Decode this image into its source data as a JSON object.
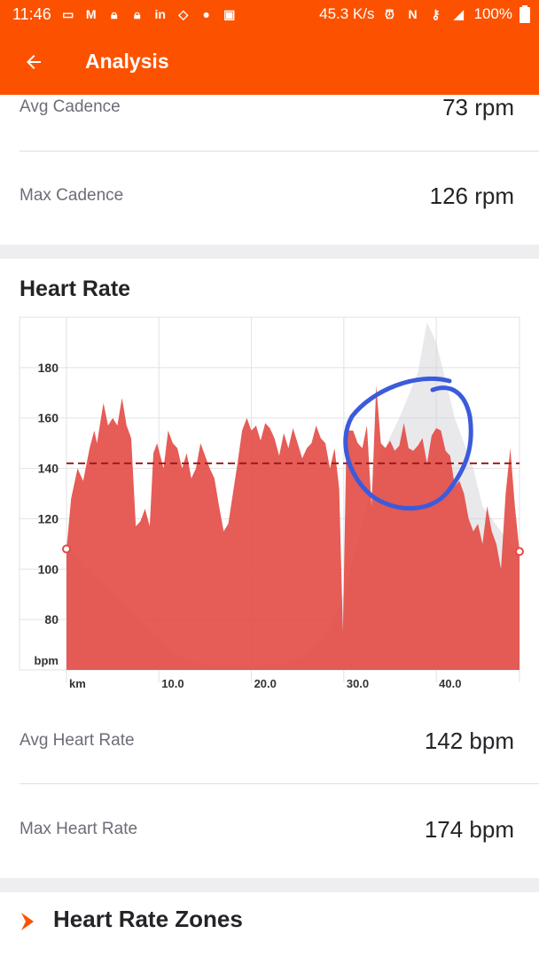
{
  "status_bar": {
    "time": "11:46",
    "network_speed": "45.3 K/s",
    "battery": "100%",
    "icons": [
      "sd-card-icon",
      "gmail-icon",
      "lock-icon",
      "lock-icon",
      "linkedin-icon",
      "assistant-icon",
      "google-icon",
      "news-icon"
    ]
  },
  "header": {
    "title": "Analysis"
  },
  "cadence": {
    "avg_label": "Avg Cadence",
    "avg_value": "73 rpm",
    "max_label": "Max Cadence",
    "max_value": "126 rpm"
  },
  "heart_rate": {
    "title": "Heart Rate",
    "avg_label": "Avg Heart Rate",
    "avg_value": "142 bpm",
    "max_label": "Max Heart Rate",
    "max_value": "174 bpm"
  },
  "zones": {
    "title": "Heart Rate Zones"
  },
  "colors": {
    "brand": "#fc5200",
    "hr_fill": "#e34a44",
    "avg_line": "#9e1b1b",
    "annotation": "#3b5bdb"
  },
  "chart_data": {
    "type": "area",
    "xlabel": "km",
    "ylabel": "bpm",
    "x_ticks": [
      "10.0",
      "20.0",
      "30.0",
      "40.0"
    ],
    "y_ticks": [
      "80",
      "100",
      "120",
      "140",
      "160",
      "180"
    ],
    "xlim": [
      0,
      49
    ],
    "ylim": [
      60,
      200
    ],
    "grid": true,
    "avg_line": 142,
    "series": [
      {
        "x": [
          0,
          0.5,
          1.2,
          1.8,
          2.5,
          3,
          3.3,
          4,
          4.5,
          5,
          5.5,
          6,
          6.5,
          7,
          7.5,
          8,
          8.5,
          9,
          9.4,
          9.8,
          10.5,
          11,
          11.5,
          12,
          12.5,
          13,
          13.5,
          14,
          14.5,
          15,
          15.5,
          16,
          16.5,
          17,
          17.5,
          18,
          18.5,
          19,
          19.5,
          20,
          20.5,
          21,
          21.5,
          22,
          22.5,
          23,
          23.5,
          24,
          24.5,
          25,
          25.5,
          26,
          26.5,
          27,
          27.5,
          28,
          28.5,
          29,
          29.5,
          29.9,
          30.3,
          31,
          31.5,
          32,
          32.5,
          33,
          33.5,
          34,
          34.5,
          35,
          35.5,
          36,
          36.5,
          37,
          37.5,
          38,
          38.5,
          39,
          39.5,
          40,
          40.5,
          41,
          41.5,
          42,
          42.5,
          43,
          43.5,
          44,
          44.5,
          45,
          45.5,
          46,
          46.5,
          47,
          47.5,
          48,
          48.5,
          49
        ],
        "y": [
          108,
          128,
          140,
          135,
          148,
          155,
          150,
          166,
          157,
          160,
          157,
          168,
          157,
          152,
          117,
          119,
          124,
          117,
          146,
          150,
          140,
          155,
          150,
          148,
          140,
          146,
          136,
          140,
          150,
          145,
          140,
          136,
          125,
          115,
          118,
          130,
          142,
          155,
          160,
          155,
          157,
          151,
          158,
          156,
          152,
          145,
          154,
          148,
          156,
          150,
          144,
          148,
          150,
          157,
          152,
          150,
          140,
          148,
          132,
          75,
          155,
          155,
          150,
          148,
          157,
          125,
          173,
          150,
          148,
          151,
          147,
          149,
          158,
          148,
          147,
          149,
          152,
          142,
          153,
          156,
          155,
          147,
          145,
          133,
          135,
          130,
          120,
          115,
          118,
          110,
          125,
          115,
          110,
          100,
          130,
          148,
          125,
          107
        ]
      },
      {
        "name": "Elevation",
        "x": [
          0,
          2,
          4,
          6,
          8,
          10,
          12,
          14,
          16,
          18,
          20,
          22,
          24,
          26,
          28,
          30,
          32,
          34,
          36,
          38,
          39,
          40,
          41,
          42,
          43,
          44,
          45,
          46,
          47,
          48,
          49
        ],
        "y": [
          110,
          100,
          95,
          88,
          80,
          72,
          66,
          63,
          61,
          61,
          61,
          62,
          63,
          66,
          73,
          90,
          118,
          145,
          160,
          178,
          198,
          190,
          175,
          160,
          150,
          140,
          125,
          120,
          115,
          110,
          105
        ]
      }
    ]
  }
}
